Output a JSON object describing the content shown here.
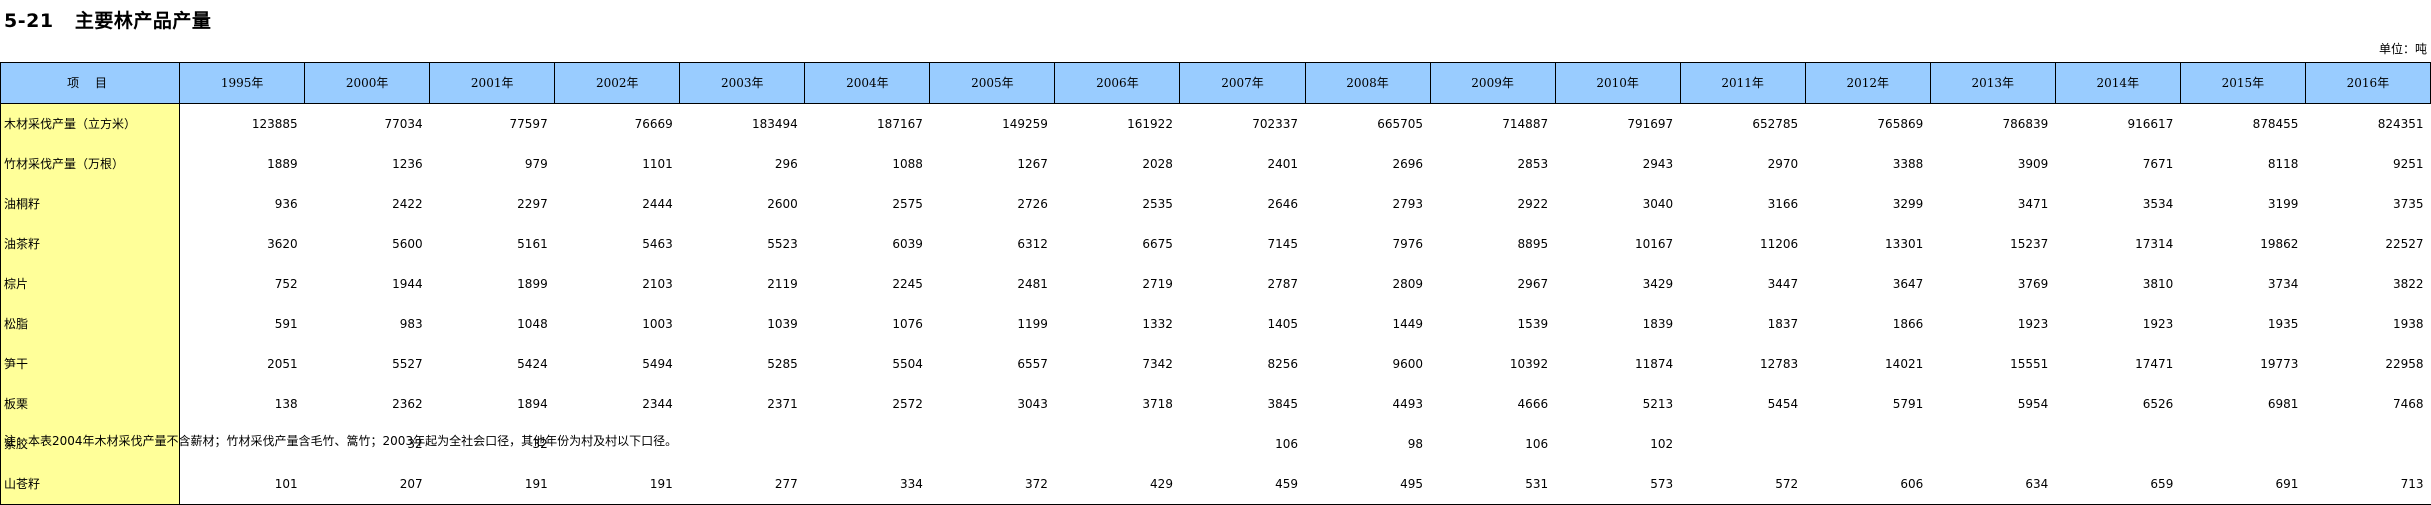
{
  "title": "5-21   主要林产品产量",
  "unit": "单位：吨",
  "columns": {
    "item": "项  目",
    "years": [
      "1995年",
      "2000年",
      "2001年",
      "2002年",
      "2003年",
      "2004年",
      "2005年",
      "2006年",
      "2007年",
      "2008年",
      "2009年",
      "2010年",
      "2011年",
      "2012年",
      "2013年",
      "2014年",
      "2015年",
      "2016年"
    ]
  },
  "rows": [
    {
      "label": "木材采伐产量（立方米）",
      "values": [
        "123885",
        "77034",
        "77597",
        "76669",
        "183494",
        "187167",
        "149259",
        "161922",
        "702337",
        "665705",
        "714887",
        "791697",
        "652785",
        "765869",
        "786839",
        "916617",
        "878455",
        "824351"
      ]
    },
    {
      "label": "竹材采伐产量（万根）",
      "values": [
        "1889",
        "1236",
        "979",
        "1101",
        "296",
        "1088",
        "1267",
        "2028",
        "2401",
        "2696",
        "2853",
        "2943",
        "2970",
        "3388",
        "3909",
        "7671",
        "8118",
        "9251"
      ]
    },
    {
      "label": "油桐籽",
      "values": [
        "936",
        "2422",
        "2297",
        "2444",
        "2600",
        "2575",
        "2726",
        "2535",
        "2646",
        "2793",
        "2922",
        "3040",
        "3166",
        "3299",
        "3471",
        "3534",
        "3199",
        "3735"
      ]
    },
    {
      "label": "油茶籽",
      "values": [
        "3620",
        "5600",
        "5161",
        "5463",
        "5523",
        "6039",
        "6312",
        "6675",
        "7145",
        "7976",
        "8895",
        "10167",
        "11206",
        "13301",
        "15237",
        "17314",
        "19862",
        "22527"
      ]
    },
    {
      "label": "棕片",
      "values": [
        "752",
        "1944",
        "1899",
        "2103",
        "2119",
        "2245",
        "2481",
        "2719",
        "2787",
        "2809",
        "2967",
        "3429",
        "3447",
        "3647",
        "3769",
        "3810",
        "3734",
        "3822"
      ]
    },
    {
      "label": "松脂",
      "values": [
        "591",
        "983",
        "1048",
        "1003",
        "1039",
        "1076",
        "1199",
        "1332",
        "1405",
        "1449",
        "1539",
        "1839",
        "1837",
        "1866",
        "1923",
        "1923",
        "1935",
        "1938"
      ]
    },
    {
      "label": "笋干",
      "values": [
        "2051",
        "5527",
        "5424",
        "5494",
        "5285",
        "5504",
        "6557",
        "7342",
        "8256",
        "9600",
        "10392",
        "11874",
        "12783",
        "14021",
        "15551",
        "17471",
        "19773",
        "22958"
      ]
    },
    {
      "label": "板栗",
      "values": [
        "138",
        "2362",
        "1894",
        "2344",
        "2371",
        "2572",
        "3043",
        "3718",
        "3845",
        "4493",
        "4666",
        "5213",
        "5454",
        "5791",
        "5954",
        "6526",
        "6981",
        "7468"
      ]
    },
    {
      "label": "紫胶",
      "values": [
        "",
        "32",
        "32",
        "",
        "",
        "",
        "",
        "",
        "106",
        "98",
        "106",
        "102",
        "",
        "",
        "",
        "",
        "",
        ""
      ]
    },
    {
      "label": "山苍籽",
      "values": [
        "101",
        "207",
        "191",
        "191",
        "277",
        "334",
        "372",
        "429",
        "459",
        "495",
        "531",
        "573",
        "572",
        "606",
        "634",
        "659",
        "691",
        "713"
      ]
    }
  ],
  "note": "注：本表2004年木材采伐产量不含薪材；竹材采伐产量含毛竹、篙竹；2003年起为全社会口径，其他年份为村及村以下口径。"
}
